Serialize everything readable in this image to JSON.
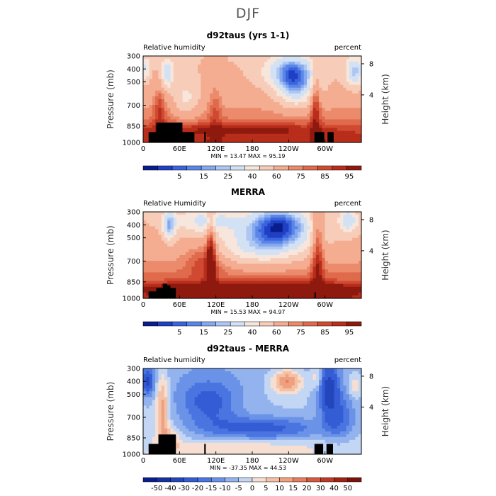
{
  "figure_title": "DJF",
  "chart_data": [
    {
      "type": "heatmap",
      "title": "d92taus (yrs 1-1)",
      "left_label": "Relative humidity",
      "right_label": "percent",
      "ylabel": "Pressure (mb)",
      "ylabel_right": "Height (km)",
      "y_ticks": [
        "300",
        "400",
        "500",
        "700",
        "850",
        "1000"
      ],
      "y_ticks_right": [
        "8",
        "4"
      ],
      "x_ticks": [
        "0",
        "60E",
        "120E",
        "180",
        "120W",
        "60W"
      ],
      "stats": "MIN =   13.47   MAX =   95.19",
      "colorbar_labels": [
        "5",
        "15",
        "25",
        "40",
        "60",
        "75",
        "85",
        "95"
      ],
      "colors": [
        "#0a1d8c",
        "#1f3fc4",
        "#3b64dc",
        "#5b86e8",
        "#84a9ee",
        "#aec6f2",
        "#d3e1f5",
        "#f7e6dc",
        "#f7cdb9",
        "#f4ad91",
        "#ec8b6c",
        "#df6a4c",
        "#cf4a30",
        "#b82d1b",
        "#8e1a0f"
      ]
    },
    {
      "type": "heatmap",
      "title": "MERRA",
      "left_label": "Relative Humidity",
      "right_label": "percent",
      "ylabel": "Pressure (mb)",
      "ylabel_right": "Height (km)",
      "y_ticks": [
        "300",
        "400",
        "500",
        "700",
        "850",
        "1000"
      ],
      "y_ticks_right": [
        "8",
        "4"
      ],
      "x_ticks": [
        "0",
        "60E",
        "120E",
        "180",
        "120W",
        "60W"
      ],
      "stats": "MIN =   15.53   MAX =   94.97",
      "colorbar_labels": [
        "5",
        "15",
        "25",
        "40",
        "60",
        "75",
        "85",
        "95"
      ],
      "colors": [
        "#0a1d8c",
        "#1f3fc4",
        "#3b64dc",
        "#5b86e8",
        "#84a9ee",
        "#aec6f2",
        "#d3e1f5",
        "#f7e6dc",
        "#f7cdb9",
        "#f4ad91",
        "#ec8b6c",
        "#df6a4c",
        "#cf4a30",
        "#b82d1b",
        "#8e1a0f"
      ]
    },
    {
      "type": "heatmap",
      "title": "d92taus - MERRA",
      "left_label": "Relative humidity",
      "right_label": "percent",
      "ylabel": "Pressure (mb)",
      "ylabel_right": "Height (km)",
      "y_ticks": [
        "300",
        "400",
        "500",
        "700",
        "850",
        "1000"
      ],
      "y_ticks_right": [
        "8",
        "4"
      ],
      "x_ticks": [
        "0",
        "60E",
        "120E",
        "180",
        "120W",
        "60W"
      ],
      "stats": "MIN =  -37.35   MAX =   44.53",
      "colorbar_labels": [
        "-50",
        "-40",
        "-30",
        "-20",
        "-15",
        "-10",
        "-5",
        "0",
        "5",
        "10",
        "15",
        "20",
        "30",
        "40",
        "50"
      ],
      "colors": [
        "#0a1d8c",
        "#16309f",
        "#2346bb",
        "#345cd4",
        "#4a74e0",
        "#6a93e8",
        "#93b3ee",
        "#c3d6f3",
        "#f6dfd2",
        "#f4c1a6",
        "#efa07f",
        "#e47e5e",
        "#d55b3f",
        "#bf3a25",
        "#a02314",
        "#7a130b"
      ]
    }
  ]
}
